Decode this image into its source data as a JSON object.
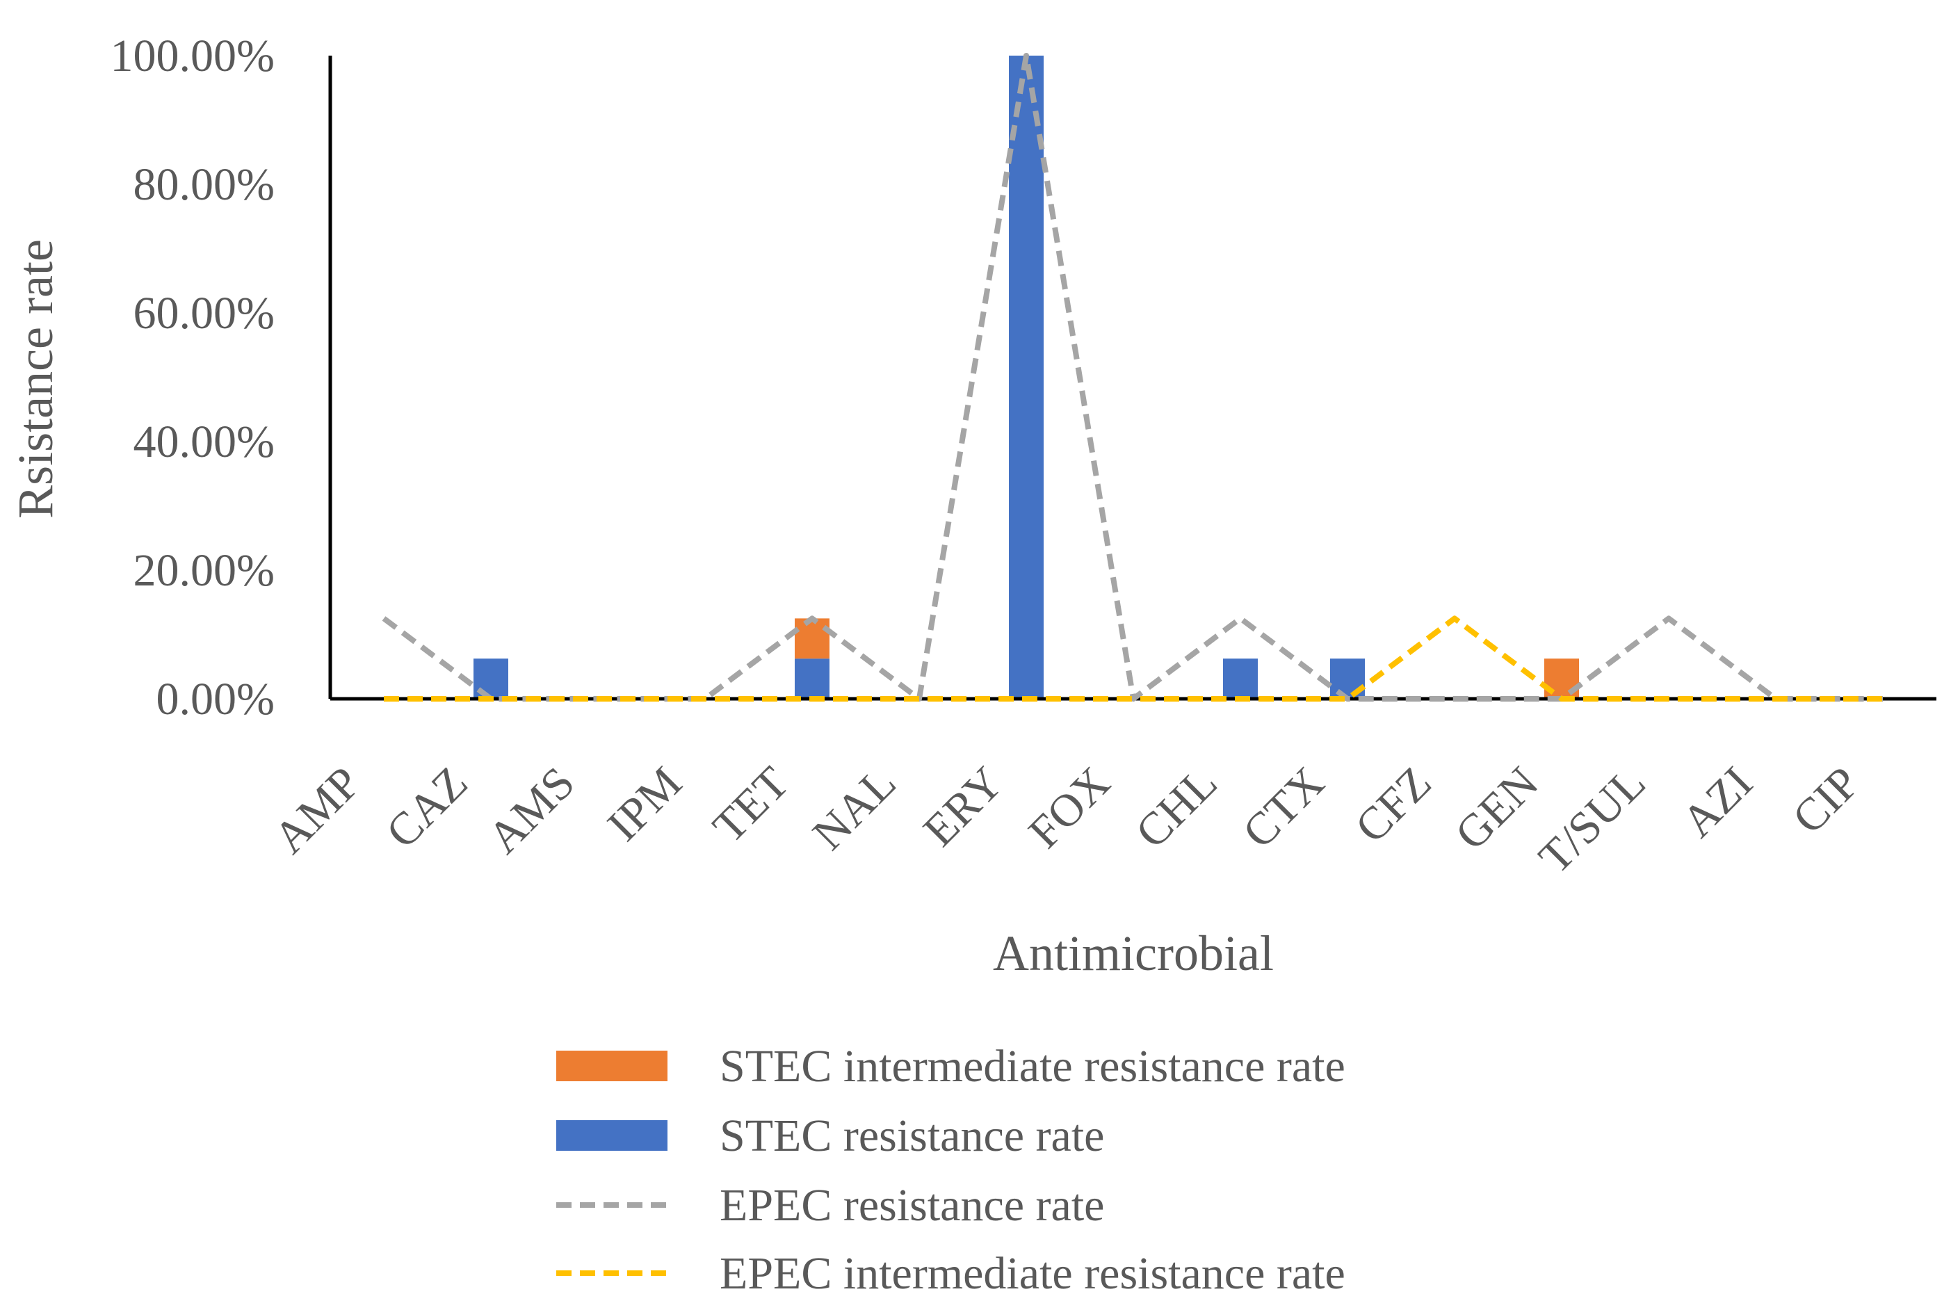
{
  "chart_data": {
    "type": "bar",
    "xlabel": "Antimicrobial",
    "ylabel": "Rsistance rate",
    "ylim": [
      0,
      100
    ],
    "y_ticks": [
      "0.00%",
      "20.00%",
      "40.00%",
      "60.00%",
      "80.00%",
      "100.00%"
    ],
    "y_tick_values": [
      0,
      20,
      40,
      60,
      80,
      100
    ],
    "categories": [
      "AMP",
      "CAZ",
      "AMS",
      "IPM",
      "TET",
      "NAL",
      "ERY",
      "FOX",
      "CHL",
      "CTX",
      "CFZ",
      "GEN",
      "T/SUL",
      "AZI",
      "CIP"
    ],
    "series": [
      {
        "name": "STEC intermediate resistance rate",
        "kind": "stacked-bar",
        "color": "#ED7D31",
        "values": [
          0,
          0,
          0,
          0,
          6.25,
          0,
          0,
          0,
          0,
          0,
          0,
          6.25,
          0,
          0,
          0
        ]
      },
      {
        "name": "STEC resistance rate",
        "kind": "stacked-bar",
        "color": "#4472C4",
        "values": [
          0,
          6.25,
          0,
          0,
          6.25,
          0,
          100,
          0,
          6.25,
          6.25,
          0,
          0,
          0,
          0,
          0
        ]
      },
      {
        "name": "EPEC resistance rate",
        "kind": "dashed-line",
        "color": "#A5A5A5",
        "values": [
          12.5,
          0,
          0,
          0,
          12.5,
          0,
          100,
          0,
          12.5,
          0,
          0,
          0,
          12.5,
          0,
          0
        ]
      },
      {
        "name": "EPEC intermediate resistance rate",
        "kind": "dashed-line",
        "color": "#FFC000",
        "values": [
          0,
          0,
          0,
          0,
          0,
          0,
          0,
          0,
          0,
          0,
          12.5,
          0,
          0,
          0,
          0
        ]
      }
    ],
    "legend": {
      "position": "bottom",
      "order": [
        "STEC intermediate resistance rate",
        "STEC resistance rate",
        "EPEC resistance rate",
        "EPEC intermediate resistance rate"
      ]
    }
  }
}
